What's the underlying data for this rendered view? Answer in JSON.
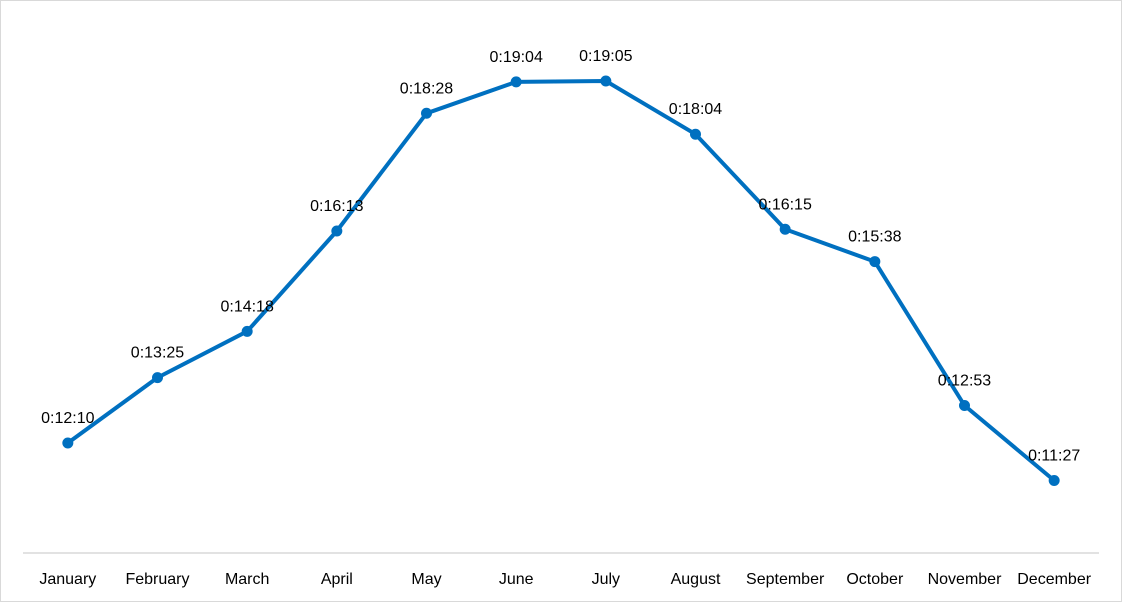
{
  "chart_data": {
    "type": "line",
    "categories": [
      "January",
      "February",
      "March",
      "April",
      "May",
      "June",
      "July",
      "August",
      "September",
      "October",
      "November",
      "December"
    ],
    "values_seconds": [
      730,
      805,
      858,
      973,
      1108,
      1144,
      1145,
      1084,
      975,
      938,
      773,
      687
    ],
    "data_labels": [
      "0:12:10",
      "0:13:25",
      "0:14:18",
      "0:16:13",
      "0:18:28",
      "0:19:04",
      "0:19:05",
      "0:18:04",
      "0:16:15",
      "0:15:38",
      "0:12:53",
      "0:11:27"
    ],
    "series_color": "#0070C0",
    "axis_color": "#d9d9d9",
    "grid": false,
    "legend": "none"
  }
}
